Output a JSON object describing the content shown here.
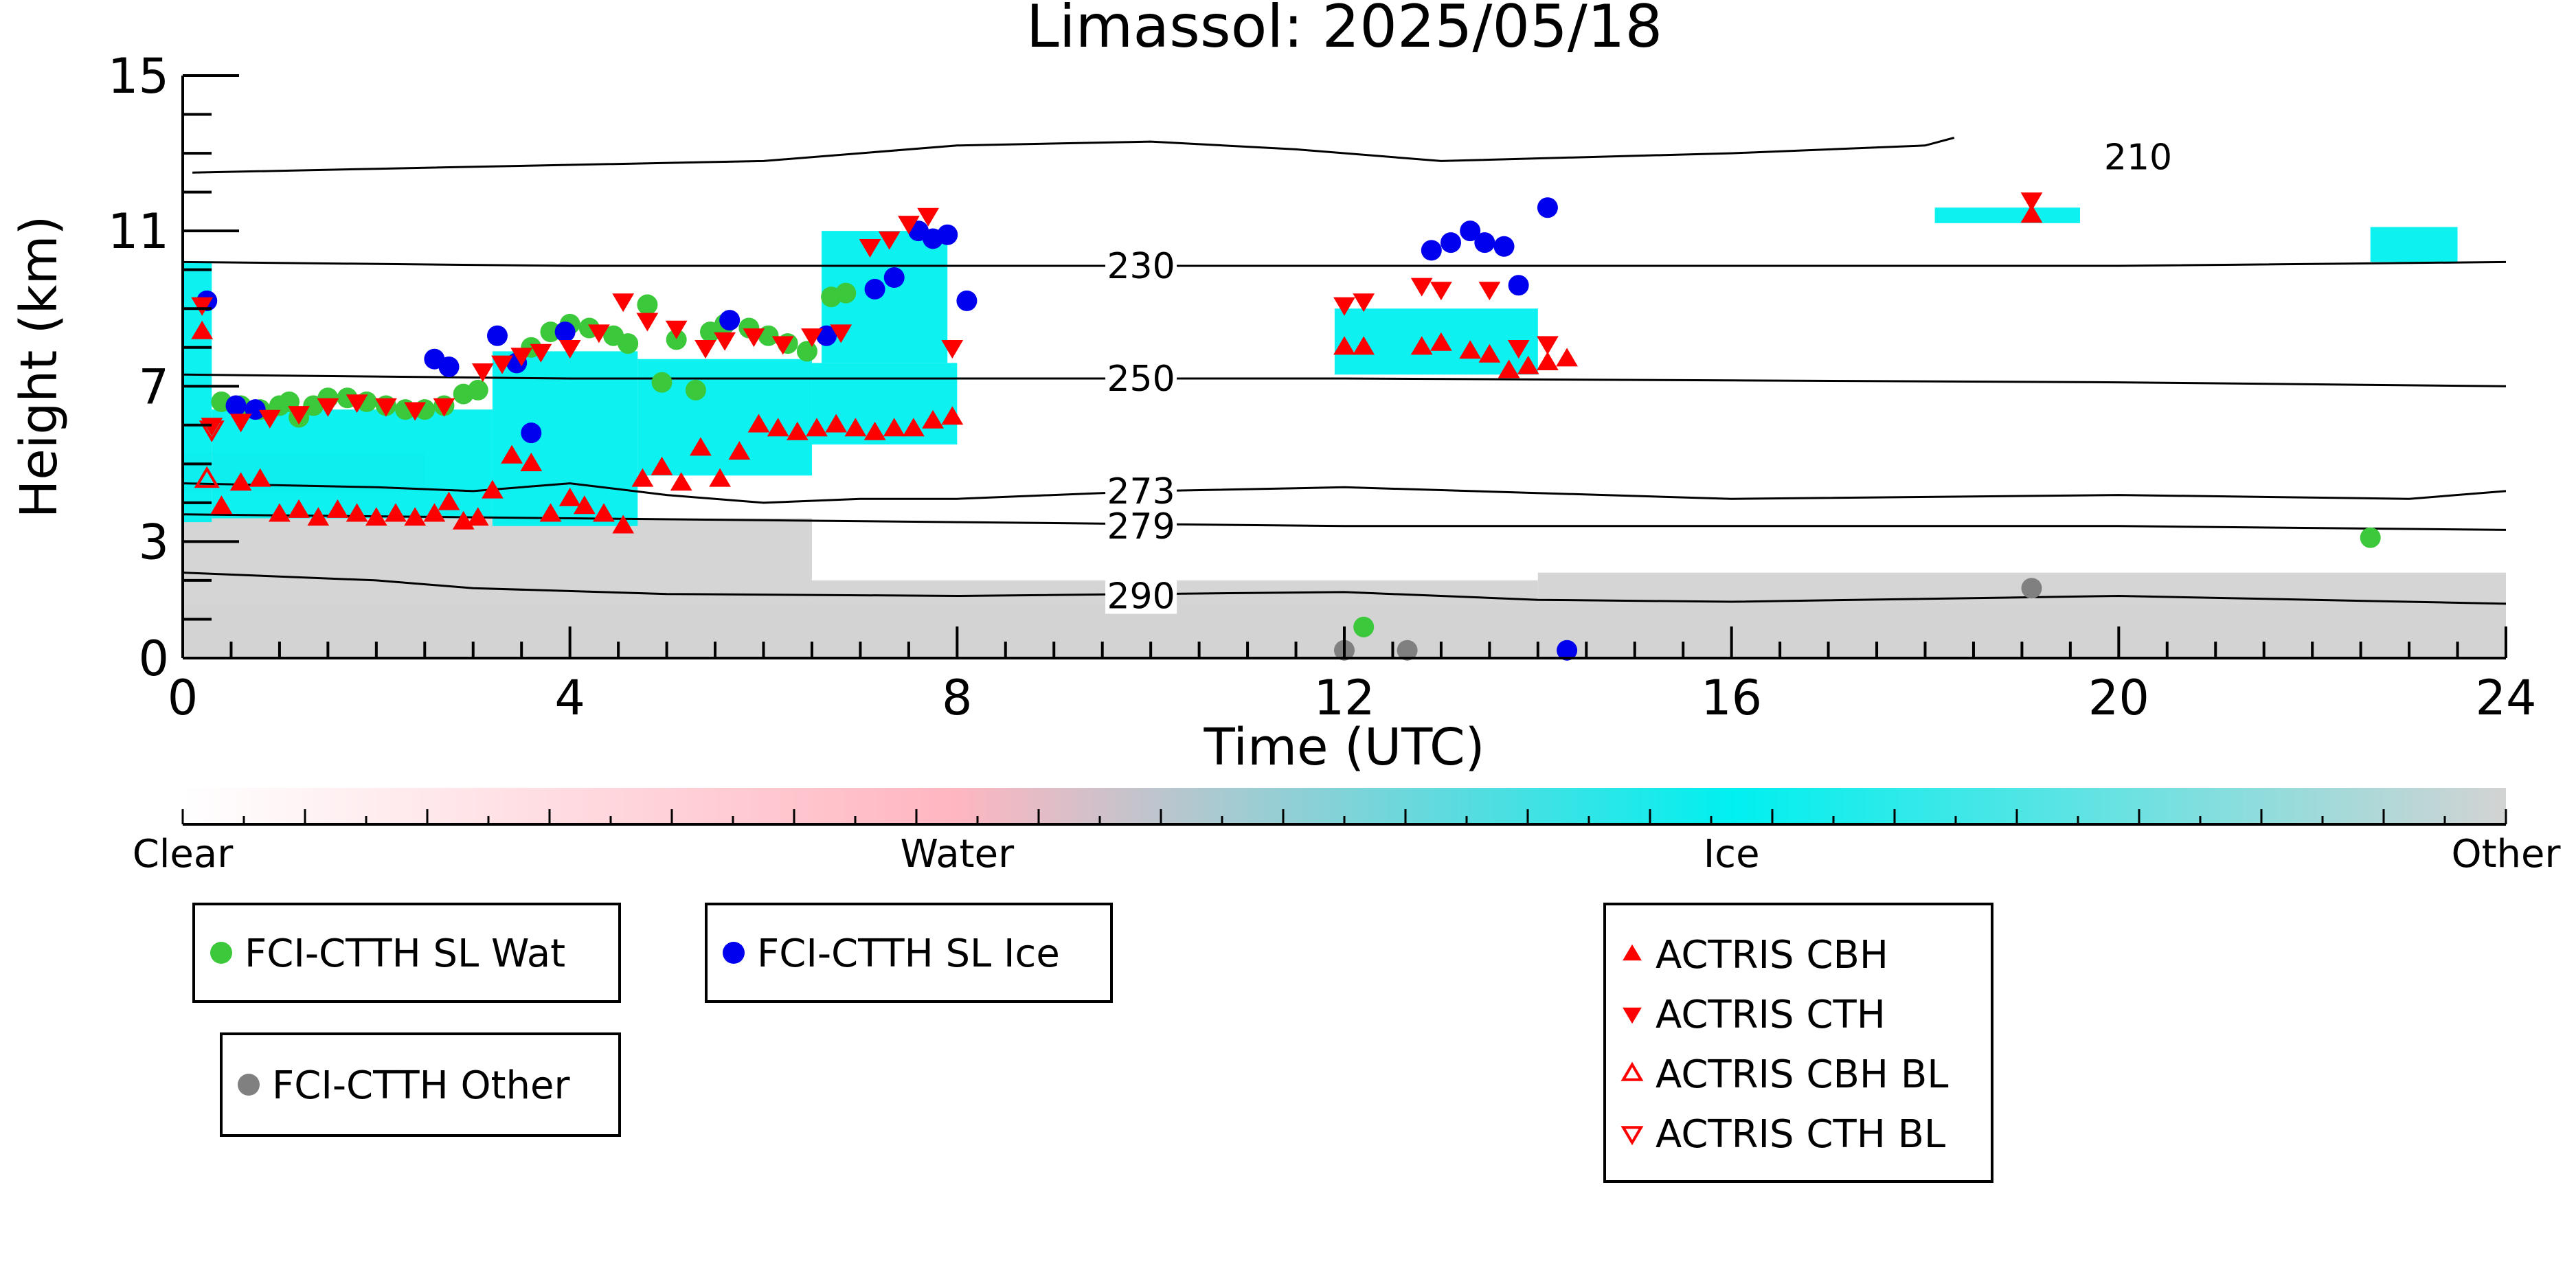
{
  "chart_data": {
    "type": "scatter",
    "title": "Limassol: 2025/05/18",
    "xlabel": "Time (UTC)",
    "ylabel": "Height (km)",
    "xlim": [
      0,
      24
    ],
    "ylim": [
      0,
      15
    ],
    "x_ticks": [
      0,
      4,
      8,
      12,
      16,
      20,
      24
    ],
    "y_ticks": [
      0,
      3,
      7,
      11,
      15
    ],
    "x_tick_labels": [
      "0",
      "4",
      "8",
      "12",
      "16",
      "20",
      "24"
    ],
    "y_tick_labels": [
      "0",
      "3",
      "7",
      "11",
      "15"
    ],
    "colors": {
      "water_point": "#3bc93b",
      "ice_point": "#0000ee",
      "other_point": "#808080",
      "actris": "#ff0000",
      "ice_cloud": "#00f0f0",
      "other_cloud": "#d3d3d3",
      "water_cloud": "#ffb6c1",
      "contour": "#000000"
    },
    "temperature_contours": [
      {
        "label": "210",
        "points": [
          [
            0.1,
            12.5
          ],
          [
            2,
            12.6
          ],
          [
            4,
            12.7
          ],
          [
            6,
            12.8
          ],
          [
            8,
            13.2
          ],
          [
            10,
            13.3
          ],
          [
            11.5,
            13.1
          ],
          [
            13,
            12.8
          ],
          [
            14.5,
            12.9
          ],
          [
            16,
            13.0
          ],
          [
            18,
            13.2
          ],
          [
            18.3,
            13.4
          ]
        ]
      },
      {
        "label": "230",
        "points": [
          [
            0,
            10.2
          ],
          [
            4,
            10.1
          ],
          [
            8,
            10.1
          ],
          [
            12,
            10.1
          ],
          [
            16,
            10.1
          ],
          [
            20,
            10.1
          ],
          [
            24,
            10.2
          ]
        ]
      },
      {
        "label": "250",
        "points": [
          [
            0,
            7.3
          ],
          [
            4,
            7.2
          ],
          [
            8,
            7.2
          ],
          [
            12,
            7.2
          ],
          [
            16,
            7.15
          ],
          [
            20,
            7.1
          ],
          [
            24,
            7.0
          ]
        ]
      },
      {
        "label": "273",
        "points": [
          [
            0,
            4.5
          ],
          [
            2,
            4.4
          ],
          [
            3,
            4.3
          ],
          [
            4,
            4.5
          ],
          [
            5,
            4.2
          ],
          [
            6,
            4.0
          ],
          [
            7,
            4.1
          ],
          [
            8,
            4.1
          ],
          [
            10,
            4.3
          ],
          [
            12,
            4.4
          ],
          [
            16,
            4.1
          ],
          [
            20,
            4.2
          ],
          [
            23,
            4.1
          ],
          [
            24,
            4.3
          ]
        ]
      },
      {
        "label": "279",
        "points": [
          [
            0,
            3.7
          ],
          [
            4,
            3.6
          ],
          [
            8,
            3.5
          ],
          [
            12,
            3.4
          ],
          [
            16,
            3.4
          ],
          [
            20,
            3.4
          ],
          [
            24,
            3.3
          ]
        ]
      },
      {
        "label": "290",
        "points": [
          [
            0,
            2.2
          ],
          [
            2,
            2.0
          ],
          [
            3,
            1.8
          ],
          [
            5,
            1.65
          ],
          [
            8,
            1.6
          ],
          [
            12,
            1.7
          ],
          [
            14,
            1.5
          ],
          [
            16,
            1.45
          ],
          [
            20,
            1.6
          ],
          [
            24,
            1.4
          ]
        ]
      }
    ],
    "cloud_regions": [
      {
        "class": "other",
        "x": [
          0,
          24
        ],
        "y": [
          0,
          1.4
        ]
      },
      {
        "class": "other",
        "x": [
          0,
          6.5
        ],
        "y": [
          0,
          3.6
        ]
      },
      {
        "class": "other",
        "x": [
          6.5,
          14
        ],
        "y": [
          0,
          2.0
        ]
      },
      {
        "class": "other",
        "x": [
          14,
          24
        ],
        "y": [
          0,
          2.2
        ]
      },
      {
        "class": "water",
        "x": [
          0,
          2.5
        ],
        "y": [
          4.3,
          5.3
        ]
      },
      {
        "class": "ice",
        "x": [
          0,
          0.3
        ],
        "y": [
          3.5,
          10.2
        ]
      },
      {
        "class": "ice",
        "x": [
          0.3,
          3.2
        ],
        "y": [
          3.6,
          6.4
        ]
      },
      {
        "class": "ice",
        "x": [
          3.2,
          4.7
        ],
        "y": [
          3.4,
          7.9
        ]
      },
      {
        "class": "ice",
        "x": [
          4.7,
          6.5
        ],
        "y": [
          4.7,
          7.7
        ]
      },
      {
        "class": "ice",
        "x": [
          6.5,
          8.0
        ],
        "y": [
          5.5,
          7.6
        ]
      },
      {
        "class": "ice",
        "x": [
          6.6,
          7.9
        ],
        "y": [
          7.6,
          11.0
        ]
      },
      {
        "class": "ice",
        "x": [
          11.9,
          14.0
        ],
        "y": [
          7.3,
          9.0
        ]
      },
      {
        "class": "ice",
        "x": [
          18.1,
          19.6
        ],
        "y": [
          11.2,
          11.6
        ]
      },
      {
        "class": "ice",
        "x": [
          22.6,
          23.5
        ],
        "y": [
          10.2,
          11.1
        ]
      }
    ],
    "series": [
      {
        "name": "FCI-CTTH SL Wat",
        "marker": "circle",
        "color": "#3bc93b",
        "points": [
          [
            0.4,
            6.6
          ],
          [
            0.6,
            6.5
          ],
          [
            0.8,
            6.4
          ],
          [
            1.0,
            6.5
          ],
          [
            1.1,
            6.6
          ],
          [
            1.2,
            6.2
          ],
          [
            1.35,
            6.5
          ],
          [
            1.5,
            6.7
          ],
          [
            1.7,
            6.7
          ],
          [
            1.9,
            6.6
          ],
          [
            2.1,
            6.5
          ],
          [
            2.3,
            6.4
          ],
          [
            2.5,
            6.4
          ],
          [
            2.7,
            6.5
          ],
          [
            2.9,
            6.8
          ],
          [
            3.05,
            6.9
          ],
          [
            3.6,
            8.0
          ],
          [
            3.8,
            8.4
          ],
          [
            4.0,
            8.6
          ],
          [
            4.2,
            8.5
          ],
          [
            4.45,
            8.3
          ],
          [
            4.6,
            8.1
          ],
          [
            4.8,
            9.1
          ],
          [
            4.95,
            7.1
          ],
          [
            5.1,
            8.2
          ],
          [
            5.3,
            6.9
          ],
          [
            5.45,
            8.4
          ],
          [
            5.6,
            8.6
          ],
          [
            5.85,
            8.5
          ],
          [
            6.05,
            8.3
          ],
          [
            6.25,
            8.1
          ],
          [
            6.45,
            7.9
          ],
          [
            6.7,
            9.3
          ],
          [
            6.85,
            9.4
          ],
          [
            12.2,
            0.8
          ],
          [
            22.6,
            3.1
          ]
        ]
      },
      {
        "name": "FCI-CTTH SL Ice",
        "marker": "circle",
        "color": "#0000ee",
        "points": [
          [
            0.25,
            9.2
          ],
          [
            0.55,
            6.5
          ],
          [
            0.75,
            6.4
          ],
          [
            2.6,
            7.7
          ],
          [
            2.75,
            7.5
          ],
          [
            3.25,
            8.3
          ],
          [
            3.45,
            7.6
          ],
          [
            3.6,
            5.8
          ],
          [
            3.95,
            8.4
          ],
          [
            5.65,
            8.7
          ],
          [
            6.65,
            8.3
          ],
          [
            7.15,
            9.5
          ],
          [
            7.35,
            9.8
          ],
          [
            7.6,
            11.0
          ],
          [
            7.75,
            10.8
          ],
          [
            7.9,
            10.9
          ],
          [
            8.1,
            9.2
          ],
          [
            12.9,
            10.5
          ],
          [
            13.1,
            10.7
          ],
          [
            13.3,
            11.0
          ],
          [
            13.45,
            10.7
          ],
          [
            13.65,
            10.6
          ],
          [
            13.8,
            9.6
          ],
          [
            14.1,
            11.6
          ],
          [
            14.3,
            0.2
          ]
        ]
      },
      {
        "name": "FCI-CTTH Other",
        "marker": "circle",
        "color": "#808080",
        "points": [
          [
            12.0,
            0.2
          ],
          [
            12.65,
            0.2
          ],
          [
            19.1,
            1.8
          ]
        ]
      },
      {
        "name": "ACTRIS CBH",
        "marker": "triangle-up",
        "color": "#ff0000",
        "points": [
          [
            0.2,
            8.4
          ],
          [
            0.4,
            3.9
          ],
          [
            0.6,
            4.5
          ],
          [
            0.8,
            4.6
          ],
          [
            1.0,
            3.7
          ],
          [
            1.2,
            3.8
          ],
          [
            1.4,
            3.6
          ],
          [
            1.6,
            3.8
          ],
          [
            1.8,
            3.7
          ],
          [
            2.0,
            3.6
          ],
          [
            2.2,
            3.7
          ],
          [
            2.4,
            3.6
          ],
          [
            2.6,
            3.7
          ],
          [
            2.75,
            4.0
          ],
          [
            2.9,
            3.5
          ],
          [
            3.05,
            3.6
          ],
          [
            3.2,
            4.3
          ],
          [
            3.4,
            5.2
          ],
          [
            3.6,
            5.0
          ],
          [
            3.8,
            3.7
          ],
          [
            4.0,
            4.1
          ],
          [
            4.15,
            3.9
          ],
          [
            4.35,
            3.7
          ],
          [
            4.55,
            3.4
          ],
          [
            4.75,
            4.6
          ],
          [
            4.95,
            4.9
          ],
          [
            5.15,
            4.5
          ],
          [
            5.35,
            5.4
          ],
          [
            5.55,
            4.6
          ],
          [
            5.75,
            5.3
          ],
          [
            5.95,
            6.0
          ],
          [
            6.15,
            5.9
          ],
          [
            6.35,
            5.8
          ],
          [
            6.55,
            5.9
          ],
          [
            6.75,
            6.0
          ],
          [
            6.95,
            5.9
          ],
          [
            7.15,
            5.8
          ],
          [
            7.35,
            5.9
          ],
          [
            7.55,
            5.9
          ],
          [
            7.75,
            6.1
          ],
          [
            7.95,
            6.2
          ],
          [
            12.0,
            8.0
          ],
          [
            12.2,
            8.0
          ],
          [
            12.8,
            8.0
          ],
          [
            13.0,
            8.1
          ],
          [
            13.3,
            7.9
          ],
          [
            13.5,
            7.8
          ],
          [
            13.7,
            7.4
          ],
          [
            13.9,
            7.5
          ],
          [
            14.1,
            7.6
          ],
          [
            14.3,
            7.7
          ],
          [
            19.1,
            11.4
          ]
        ]
      },
      {
        "name": "ACTRIS CTH",
        "marker": "triangle-down",
        "color": "#ff0000",
        "points": [
          [
            0.2,
            9.1
          ],
          [
            0.3,
            6.0
          ],
          [
            0.6,
            6.1
          ],
          [
            0.9,
            6.2
          ],
          [
            1.2,
            6.3
          ],
          [
            1.5,
            6.5
          ],
          [
            1.8,
            6.6
          ],
          [
            2.1,
            6.5
          ],
          [
            2.4,
            6.4
          ],
          [
            2.7,
            6.5
          ],
          [
            3.1,
            7.4
          ],
          [
            3.3,
            7.6
          ],
          [
            3.5,
            7.8
          ],
          [
            3.7,
            7.9
          ],
          [
            4.0,
            8.0
          ],
          [
            4.3,
            8.4
          ],
          [
            4.55,
            9.2
          ],
          [
            4.8,
            8.7
          ],
          [
            5.1,
            8.5
          ],
          [
            5.4,
            8.0
          ],
          [
            5.6,
            8.2
          ],
          [
            5.9,
            8.3
          ],
          [
            6.2,
            8.1
          ],
          [
            6.5,
            8.3
          ],
          [
            6.8,
            8.4
          ],
          [
            7.1,
            10.6
          ],
          [
            7.3,
            10.8
          ],
          [
            7.5,
            11.2
          ],
          [
            7.7,
            11.4
          ],
          [
            7.95,
            8.0
          ],
          [
            12.0,
            9.1
          ],
          [
            12.2,
            9.2
          ],
          [
            12.8,
            9.6
          ],
          [
            13.0,
            9.5
          ],
          [
            13.5,
            9.5
          ],
          [
            13.8,
            8.0
          ],
          [
            14.1,
            8.1
          ],
          [
            19.1,
            11.8
          ]
        ]
      },
      {
        "name": "ACTRIS CBH BL",
        "marker": "triangle-up-open",
        "color": "#ff0000",
        "points": [
          [
            0.25,
            4.6
          ]
        ]
      },
      {
        "name": "ACTRIS CTH BL",
        "marker": "triangle-down-open",
        "color": "#ff0000",
        "points": [
          [
            0.3,
            5.9
          ]
        ]
      }
    ],
    "colorbar": {
      "labels": [
        "Clear",
        "Water",
        "Ice",
        "Other"
      ],
      "stops": [
        {
          "offset": 0,
          "color": "#ffffff"
        },
        {
          "offset": 0.333,
          "color": "#ffb6c1"
        },
        {
          "offset": 0.667,
          "color": "#00f0f0"
        },
        {
          "offset": 1,
          "color": "#d3d3d3"
        }
      ]
    },
    "legends": [
      {
        "items": [
          "FCI-CTTH SL Wat"
        ]
      },
      {
        "items": [
          "FCI-CTTH SL Ice"
        ]
      },
      {
        "items": [
          "FCI-CTTH Other"
        ]
      },
      {
        "items": [
          "ACTRIS CBH",
          "ACTRIS CTH",
          "ACTRIS CBH BL",
          "ACTRIS CTH BL"
        ]
      }
    ]
  }
}
